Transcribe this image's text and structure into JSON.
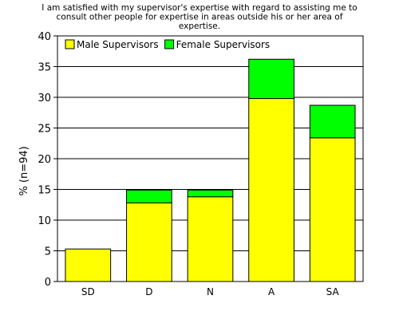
{
  "chart_data": {
    "type": "bar",
    "stacked": true,
    "title_lines": [
      "I am satisfied with my supervisor's expertise with regard to assisting me to",
      "consult other people for expertise in areas outside his or her area of",
      "expertise."
    ],
    "xlabel": "",
    "ylabel": "% (n=94)",
    "ylim": [
      0,
      40
    ],
    "yticks": [
      0,
      5,
      10,
      15,
      20,
      25,
      30,
      35,
      40
    ],
    "grid": true,
    "legend_position": "top-left",
    "categories": [
      "SD",
      "D",
      "N",
      "A",
      "SA"
    ],
    "series": [
      {
        "name": "Male Supervisors",
        "color": "#ffff00",
        "values": [
          5.3,
          12.8,
          13.8,
          29.8,
          23.4
        ]
      },
      {
        "name": "Female Supervisors",
        "color": "#00ff00",
        "values": [
          0,
          2.1,
          1.1,
          6.4,
          5.3
        ]
      }
    ]
  }
}
